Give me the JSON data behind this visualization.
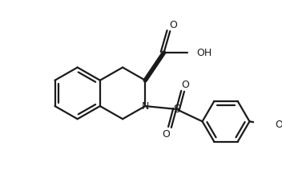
{
  "bg_color": "#ffffff",
  "line_color": "#1a1a1a",
  "text_color": "#1a1a1a",
  "line_width": 1.6,
  "figsize": [
    3.52,
    2.17
  ],
  "dpi": 100,
  "xlim": [
    0,
    352
  ],
  "ylim": [
    0,
    217
  ]
}
